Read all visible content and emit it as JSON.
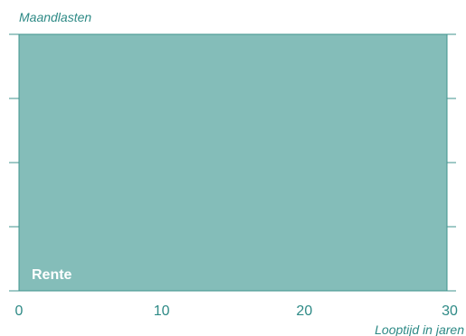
{
  "chart_data": {
    "type": "area",
    "title": "",
    "ylabel": "Maandlasten",
    "xlabel": "Looptijd in jaren",
    "x_ticks": [
      0,
      10,
      20,
      30
    ],
    "xlim": [
      0,
      30
    ],
    "ylim": [
      0,
      1
    ],
    "y_tick_count": 5,
    "series": [
      {
        "name": "Rente",
        "x": [
          0,
          30
        ],
        "y": [
          1,
          1
        ]
      }
    ],
    "grid": false,
    "legend": "inside-bottom-left"
  },
  "colors": {
    "fill": "#84bdb9",
    "stroke": "#3f938d",
    "text": "#2e8a86",
    "label": "#ffffff"
  }
}
